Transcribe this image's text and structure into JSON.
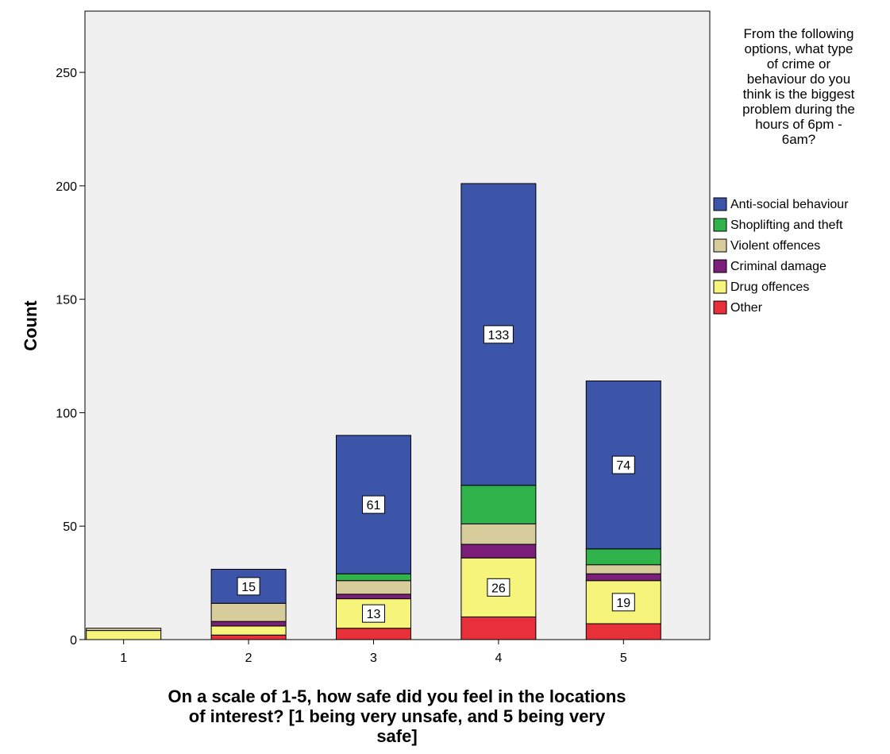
{
  "chart_data": {
    "type": "bar",
    "stacked": true,
    "categories": [
      "1",
      "2",
      "3",
      "4",
      "5"
    ],
    "series": [
      {
        "name": "Other",
        "color": "#e8303a",
        "values": [
          0,
          2,
          5,
          10,
          7
        ]
      },
      {
        "name": "Drug offences",
        "color": "#f6f47a",
        "values": [
          4,
          4,
          13,
          26,
          19
        ]
      },
      {
        "name": "Criminal damage",
        "color": "#7b1f7a",
        "values": [
          0,
          2,
          2,
          6,
          3
        ]
      },
      {
        "name": "Violent offences",
        "color": "#d7cd9c",
        "values": [
          1,
          8,
          6,
          9,
          4
        ]
      },
      {
        "name": "Shoplifting and theft",
        "color": "#2fb34a",
        "values": [
          0,
          0,
          3,
          17,
          7
        ]
      },
      {
        "name": "Anti-social behaviour",
        "color": "#3d55a8",
        "values": [
          0,
          15,
          61,
          133,
          74
        ]
      }
    ],
    "legend_order": [
      "Anti-social behaviour",
      "Shoplifting and theft",
      "Violent offences",
      "Criminal damage",
      "Drug offences",
      "Other"
    ],
    "data_labels": [
      {
        "category": "2",
        "series": "Anti-social behaviour",
        "text": "15"
      },
      {
        "category": "3",
        "series": "Anti-social behaviour",
        "text": "61"
      },
      {
        "category": "3",
        "series": "Drug offences",
        "text": "13"
      },
      {
        "category": "4",
        "series": "Anti-social behaviour",
        "text": "133"
      },
      {
        "category": "4",
        "series": "Drug offences",
        "text": "26"
      },
      {
        "category": "5",
        "series": "Anti-social behaviour",
        "text": "74"
      },
      {
        "category": "5",
        "series": "Drug offences",
        "text": "19"
      }
    ],
    "ylabel": "Count",
    "xlabel_lines": [
      "On a scale of 1-5, how safe did you feel in the locations",
      "of interest? [1 being very unsafe, and 5 being very",
      "safe]"
    ],
    "legend_title_lines": [
      "From the following",
      "options, what type",
      "of crime or",
      "behaviour do you",
      "think is the biggest",
      "problem during the",
      "hours of 6pm -",
      "6am?"
    ],
    "yticks": [
      0,
      50,
      100,
      150,
      200,
      250
    ],
    "ylim": [
      0,
      277
    ],
    "plot_background": "#f0f0f0",
    "grid": false,
    "legend_position": "right"
  }
}
